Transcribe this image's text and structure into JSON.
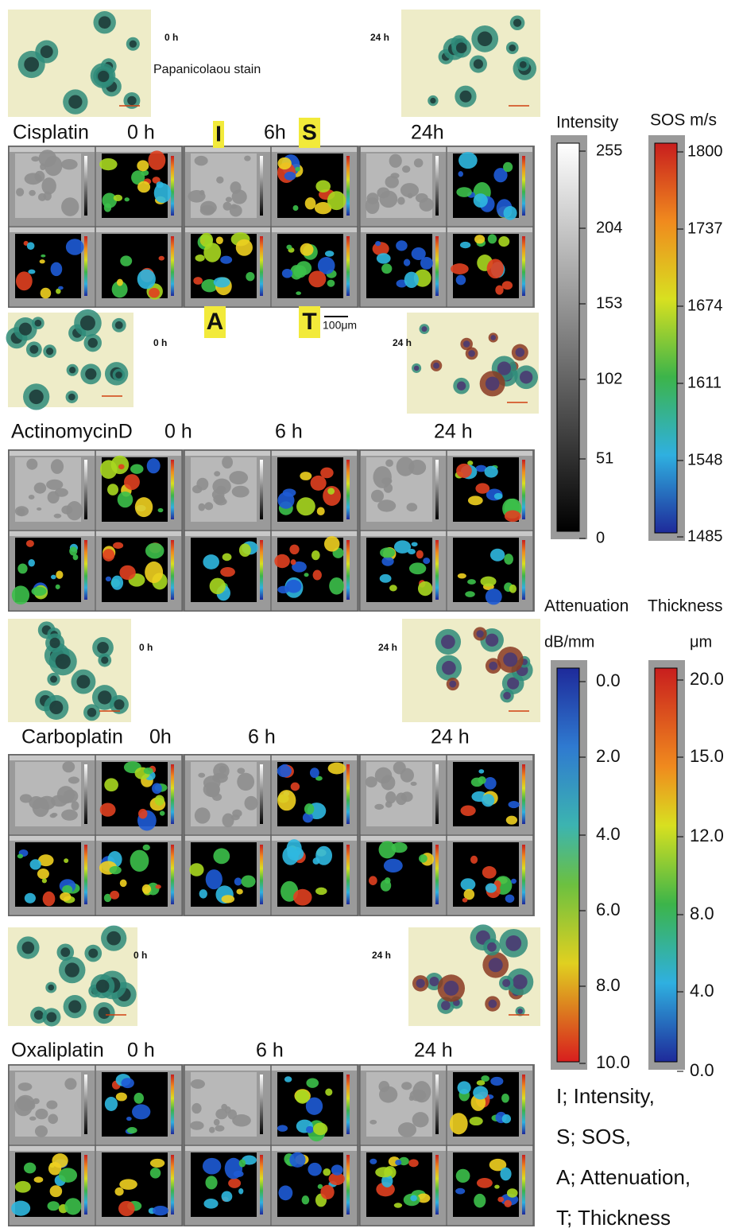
{
  "rows": [
    {
      "photo_labels": [
        "0 h",
        "24 h"
      ],
      "stain": "Papanicolaou stain",
      "drug": "Cisplatin",
      "times": [
        "0 h",
        "6h",
        "24h"
      ],
      "markers_top": [
        "I",
        "S"
      ],
      "markers_bottom": [
        "A",
        "T"
      ],
      "scale_bar": "100μm"
    },
    {
      "photo_labels": [
        "0 h",
        "24 h"
      ],
      "drug": "ActinomycinD",
      "times": [
        "0 h",
        "6 h",
        "24 h"
      ]
    },
    {
      "photo_labels": [
        "0 h",
        "24 h"
      ],
      "drug": "Carboplatin",
      "times": [
        "0h",
        "6 h",
        "24 h"
      ]
    },
    {
      "photo_labels": [
        "0 h",
        "24 h"
      ],
      "drug": "Oxaliplatin",
      "times": [
        "0 h",
        "6 h",
        "24 h"
      ]
    }
  ],
  "colorbars": [
    {
      "title": "Intensity",
      "ticks": [
        "255",
        "204",
        "153",
        "102",
        "51",
        "0"
      ]
    },
    {
      "title": "SOS m/s",
      "ticks": [
        "1800",
        "1737",
        "1674",
        "1611",
        "1548",
        "1485"
      ]
    },
    {
      "title": "Attenuation",
      "unit": "dB/mm",
      "ticks": [
        "0.0",
        "2.0",
        "4.0",
        "6.0",
        "8.0",
        "10.0"
      ]
    },
    {
      "title": "Thickness",
      "unit": "μm",
      "ticks": [
        "20.0",
        "15.0",
        "12.0",
        "8.0",
        "4.0",
        "0.0"
      ]
    }
  ],
  "legend": [
    "I; Intensity,",
    "S; SOS,",
    "A; Attenuation,",
    "T; Thickness"
  ]
}
